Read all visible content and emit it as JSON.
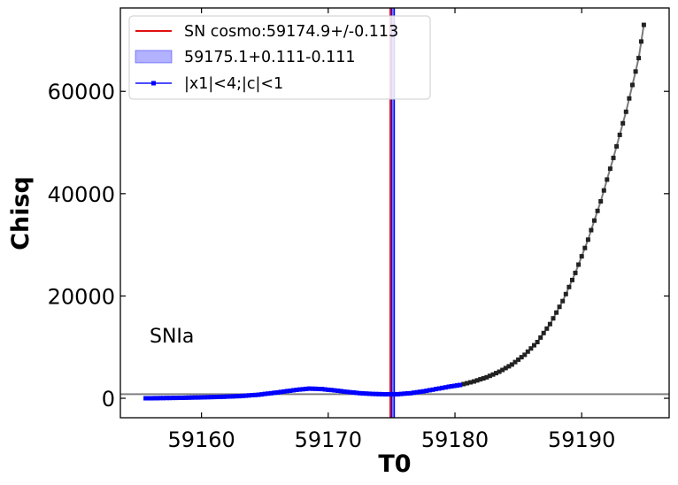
{
  "chart_data": {
    "type": "scatter",
    "xlabel": "T0",
    "ylabel": "Chisq",
    "xlim": [
      59153.6,
      59196.9
    ],
    "ylim": [
      -3800,
      76300
    ],
    "xticks": [
      "59160",
      "59170",
      "59180",
      "59190"
    ],
    "yticks": [
      "0",
      "20000",
      "40000",
      "60000"
    ],
    "grid": false,
    "legend_position": "top-left",
    "annotation": "SNIa",
    "reference_hline": 800,
    "vertical_line": {
      "label": "SN cosmo:59174.9+/-0.113",
      "x": 59174.9,
      "color": "#e01010"
    },
    "band": {
      "label": "59175.1+0.111-0.111",
      "center": 59175.1,
      "plus": 0.111,
      "minus": 0.111,
      "color": "#0000ff"
    },
    "series": [
      {
        "name": "|x1|<4;|c|<1",
        "color": "#0000ff",
        "x": [
          59155.6,
          59157.0,
          59158.5,
          59160.0,
          59161.5,
          59163.0,
          59164.5,
          59166.0,
          59167.5,
          59168.5,
          59169.5,
          59170.5,
          59171.5,
          59172.5,
          59173.5,
          59174.5,
          59175.5,
          59176.5,
          59177.5,
          59178.5,
          59179.5,
          59180.4
        ],
        "y": [
          0,
          40,
          100,
          180,
          280,
          420,
          700,
          1150,
          1650,
          1900,
          1800,
          1550,
          1250,
          1000,
          850,
          780,
          800,
          1000,
          1350,
          1800,
          2250,
          2600
        ]
      },
      {
        "name": "",
        "color": "#222222",
        "x": [
          59180.4,
          59181.5,
          59182.5,
          59183.5,
          59184.5,
          59185.5,
          59186.5,
          59187.5,
          59188.5,
          59189.5,
          59190.5,
          59191.5,
          59192.5,
          59193.5,
          59194.5,
          59194.9
        ],
        "y": [
          2600,
          3300,
          4100,
          5200,
          6600,
          8500,
          11000,
          14500,
          19000,
          24500,
          31000,
          38500,
          47000,
          56000,
          66500,
          73000
        ]
      }
    ]
  }
}
